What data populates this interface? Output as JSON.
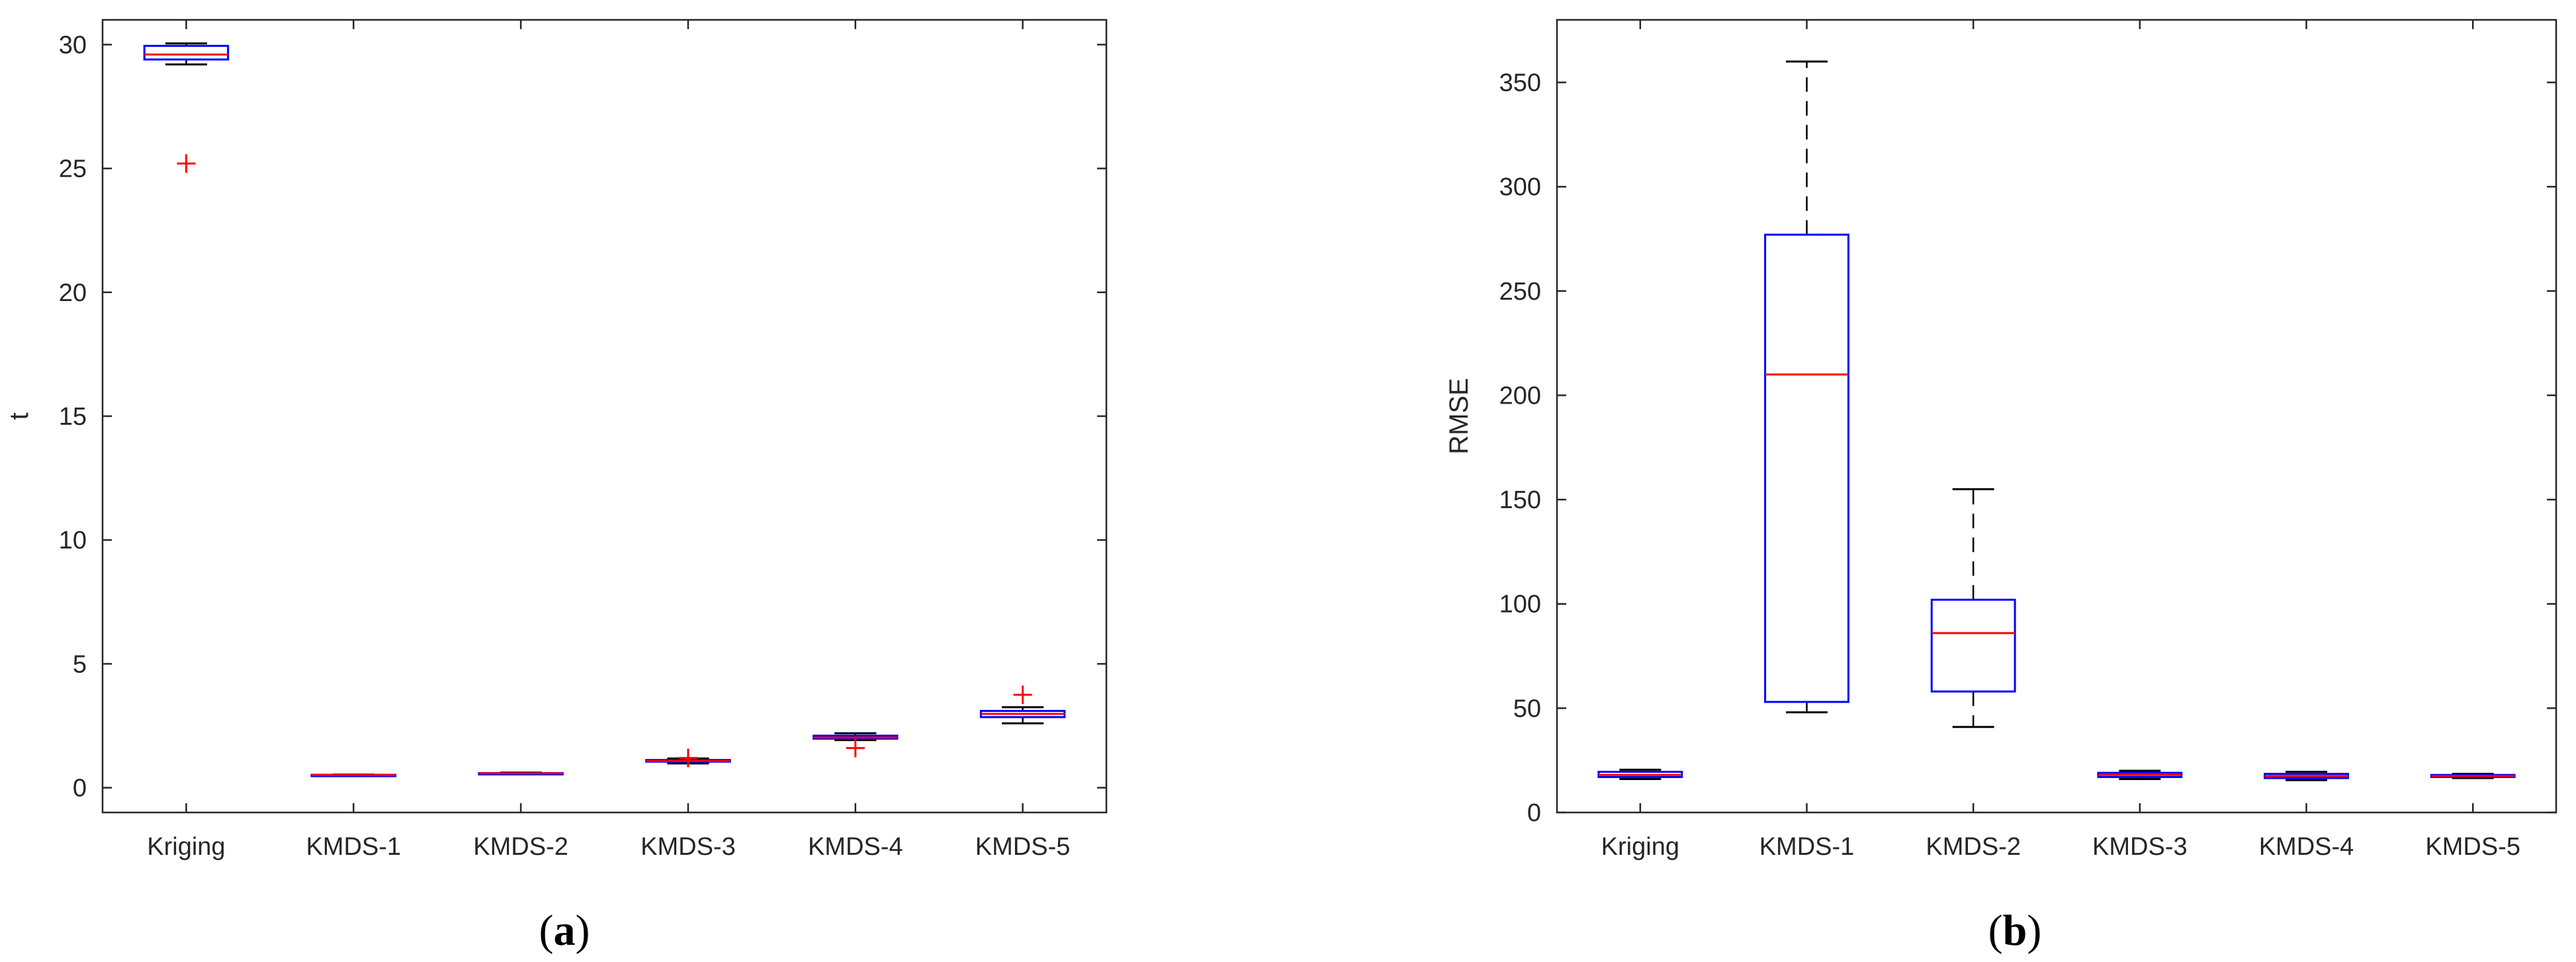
{
  "colors": {
    "box": "#0000ff",
    "median": "#ff0000",
    "whisker": "#000000",
    "outlier": "#ff0000",
    "axis": "#262626"
  },
  "chart_data": [
    {
      "type": "boxplot",
      "panel": "a",
      "panel_label": {
        "open": "(",
        "letter": "a",
        "close": ")"
      },
      "xlabel": "",
      "ylabel": "t",
      "ylim": [
        -1,
        31
      ],
      "yticks": [
        0,
        5,
        10,
        15,
        20,
        25,
        30
      ],
      "ytick_labels": [
        "0",
        "5",
        "10",
        "15",
        "20",
        "25",
        "30"
      ],
      "categories": [
        "Kriging",
        "KMDS-1",
        "KMDS-2",
        "KMDS-3",
        "KMDS-4",
        "KMDS-5"
      ],
      "boxes": [
        {
          "category": "Kriging",
          "whisker_low": 29.2,
          "q1": 29.4,
          "median": 29.6,
          "q3": 29.95,
          "whisker_high": 30.05,
          "outliers": [
            25.2
          ]
        },
        {
          "category": "KMDS-1",
          "whisker_low": 0.48,
          "q1": 0.5,
          "median": 0.51,
          "q3": 0.52,
          "whisker_high": 0.53,
          "outliers": []
        },
        {
          "category": "KMDS-2",
          "whisker_low": 0.55,
          "q1": 0.57,
          "median": 0.58,
          "q3": 0.59,
          "whisker_high": 0.61,
          "outliers": []
        },
        {
          "category": "KMDS-3",
          "whisker_low": 0.98,
          "q1": 1.05,
          "median": 1.08,
          "q3": 1.12,
          "whisker_high": 1.18,
          "outliers": [
            1.2
          ]
        },
        {
          "category": "KMDS-4",
          "whisker_low": 1.92,
          "q1": 1.98,
          "median": 2.03,
          "q3": 2.1,
          "whisker_high": 2.2,
          "outliers": [
            1.6
          ]
        },
        {
          "category": "KMDS-5",
          "whisker_low": 2.6,
          "q1": 2.85,
          "median": 2.98,
          "q3": 3.1,
          "whisker_high": 3.25,
          "outliers": [
            3.75
          ]
        }
      ]
    },
    {
      "type": "boxplot",
      "panel": "b",
      "panel_label": {
        "open": "(",
        "letter": "b",
        "close": ")"
      },
      "xlabel": "",
      "ylabel": "RMSE",
      "ylim": [
        0,
        380
      ],
      "yticks": [
        0,
        50,
        100,
        150,
        200,
        250,
        300,
        350
      ],
      "ytick_labels": [
        "0",
        "50",
        "100",
        "150",
        "200",
        "250",
        "300",
        "350"
      ],
      "categories": [
        "Kriging",
        "KMDS-1",
        "KMDS-2",
        "KMDS-3",
        "KMDS-4",
        "KMDS-5"
      ],
      "boxes": [
        {
          "category": "Kriging",
          "whisker_low": 16,
          "q1": 17,
          "median": 18,
          "q3": 19.5,
          "whisker_high": 20.5,
          "outliers": []
        },
        {
          "category": "KMDS-1",
          "whisker_low": 48,
          "q1": 53,
          "median": 210,
          "q3": 277,
          "whisker_high": 360,
          "outliers": []
        },
        {
          "category": "KMDS-2",
          "whisker_low": 41,
          "q1": 58,
          "median": 86,
          "q3": 102,
          "whisker_high": 155,
          "outliers": []
        },
        {
          "category": "KMDS-3",
          "whisker_low": 16,
          "q1": 17,
          "median": 18,
          "q3": 19,
          "whisker_high": 20,
          "outliers": []
        },
        {
          "category": "KMDS-4",
          "whisker_low": 15.5,
          "q1": 16.5,
          "median": 17.5,
          "q3": 18.5,
          "whisker_high": 19.5,
          "outliers": []
        },
        {
          "category": "KMDS-5",
          "whisker_low": 16.5,
          "q1": 17,
          "median": 17.5,
          "q3": 18,
          "whisker_high": 18.5,
          "outliers": []
        }
      ]
    }
  ]
}
